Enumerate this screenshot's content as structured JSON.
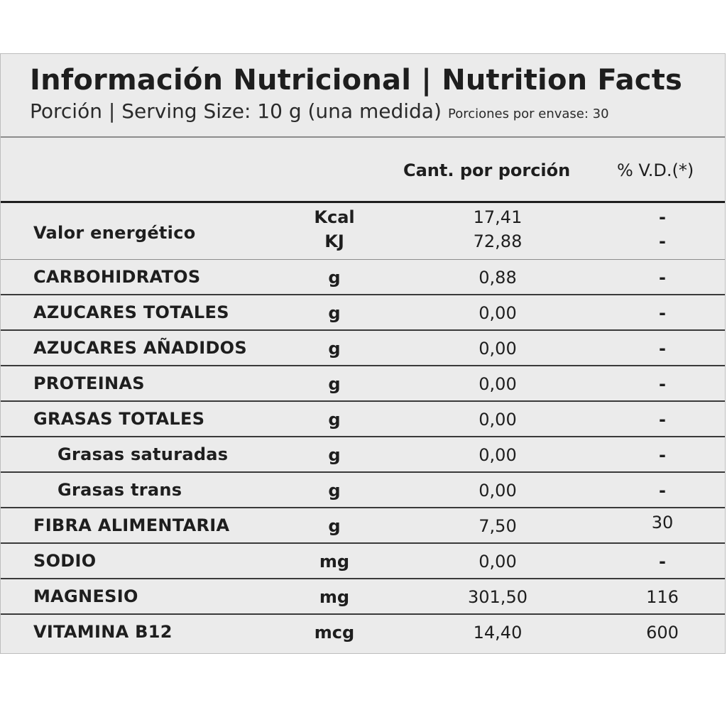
{
  "header": {
    "title": "Información Nutricional | Nutrition Facts",
    "serving_size": "Porción | Serving Size: 10 g (una medida)",
    "servings_per_container": "Porciones por envase: 30"
  },
  "columns": {
    "amount": "Cant. por porción",
    "daily_value": "% V.D.(*)"
  },
  "energy": {
    "name": "Valor energético",
    "kcal": {
      "unit": "Kcal",
      "amount": "17,41",
      "dv": "-"
    },
    "kj": {
      "unit": "KJ",
      "amount": "72,88",
      "dv": "-"
    }
  },
  "rows": [
    {
      "name": "CARBOHIDRATOS",
      "unit": "g",
      "amount": "0,88",
      "dv": "-"
    },
    {
      "name": "AZUCARES TOTALES",
      "unit": "g",
      "amount": "0,00",
      "dv": "-"
    },
    {
      "name": "AZUCARES AÑADIDOS",
      "unit": "g",
      "amount": "0,00",
      "dv": "-"
    },
    {
      "name": "PROTEINAS",
      "unit": "g",
      "amount": "0,00",
      "dv": "-"
    },
    {
      "name": "GRASAS TOTALES",
      "unit": "g",
      "amount": "0,00",
      "dv": "-"
    },
    {
      "name": "Grasas saturadas",
      "unit": "g",
      "amount": "0,00",
      "dv": "-"
    },
    {
      "name": "Grasas trans",
      "unit": "g",
      "amount": "0,00",
      "dv": "-"
    },
    {
      "name": "FIBRA ALIMENTARIA",
      "unit": "g",
      "amount": "7,50",
      "dv": "30"
    },
    {
      "name": "SODIO",
      "unit": "mg",
      "amount": "0,00",
      "dv": "-"
    },
    {
      "name": "MAGNESIO",
      "unit": "mg",
      "amount": "301,50",
      "dv": "116"
    },
    {
      "name": "VITAMINA B12",
      "unit": "mcg",
      "amount": "14,40",
      "dv": "600"
    }
  ]
}
